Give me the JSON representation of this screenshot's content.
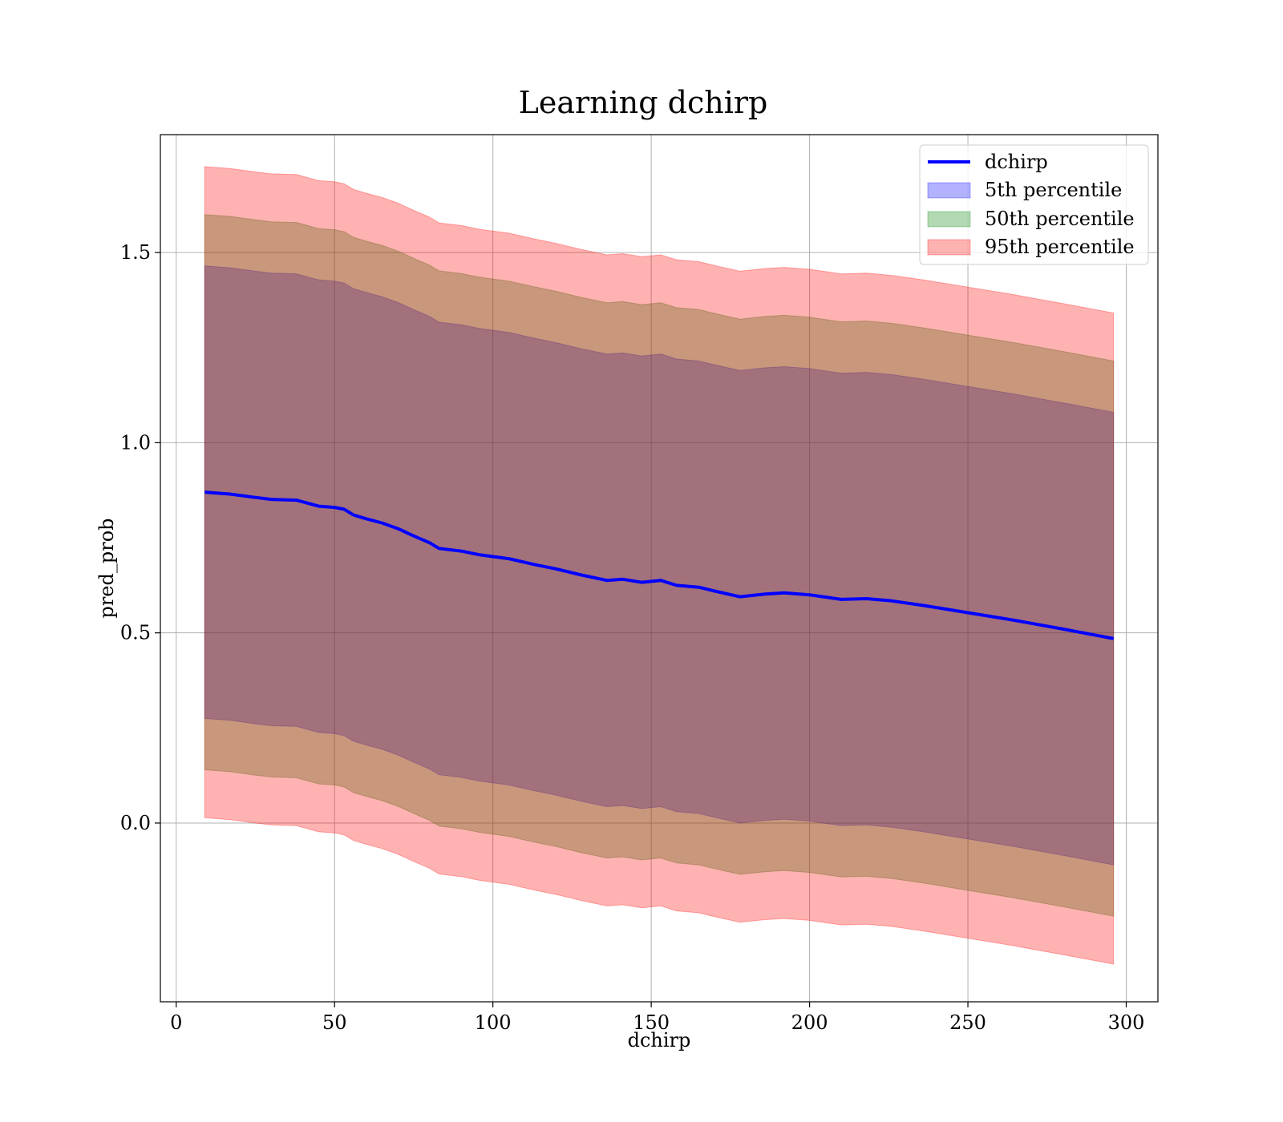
{
  "chart_data": {
    "type": "area",
    "title": "Learning dchirp",
    "xlabel": "dchirp",
    "ylabel": "pred_prob",
    "xlim": [
      -5,
      310
    ],
    "ylim": [
      -0.47,
      1.81
    ],
    "xticks": [
      0,
      50,
      100,
      150,
      200,
      250,
      300
    ],
    "yticks": [
      0.0,
      0.5,
      1.0,
      1.5
    ],
    "xtick_labels": [
      "0",
      "50",
      "100",
      "150",
      "200",
      "250",
      "300"
    ],
    "ytick_labels": [
      "0.0",
      "0.5",
      "1.0",
      "1.5"
    ],
    "grid": true,
    "legend_position": "top-right",
    "legend": [
      {
        "label": "dchirp",
        "kind": "line",
        "color": "#0000ff"
      },
      {
        "label": "5th percentile",
        "kind": "band",
        "color": "#0000ff",
        "alpha": 0.3
      },
      {
        "label": "50th percentile",
        "kind": "band",
        "color": "#008000",
        "alpha": 0.3
      },
      {
        "label": "95th percentile",
        "kind": "band",
        "color": "#ff0000",
        "alpha": 0.3
      }
    ],
    "x": [
      9,
      17,
      25,
      30,
      38,
      45,
      50,
      53,
      56,
      60,
      65,
      70,
      75,
      80,
      83,
      90,
      96,
      105,
      113,
      120,
      128,
      136,
      141,
      147,
      153,
      158,
      165,
      170,
      178,
      186,
      192,
      200,
      210,
      218,
      226,
      236,
      250,
      264,
      280,
      296
    ],
    "center": [
      0.87,
      0.865,
      0.856,
      0.851,
      0.849,
      0.833,
      0.83,
      0.825,
      0.81,
      0.8,
      0.789,
      0.774,
      0.755,
      0.737,
      0.722,
      0.715,
      0.705,
      0.695,
      0.68,
      0.668,
      0.652,
      0.638,
      0.641,
      0.633,
      0.638,
      0.625,
      0.62,
      0.61,
      0.595,
      0.602,
      0.605,
      0.6,
      0.588,
      0.59,
      0.584,
      0.572,
      0.553,
      0.534,
      0.51,
      0.485
    ],
    "series": [
      {
        "name": "5th percentile",
        "half_width": 0.595,
        "color": "#0000ff",
        "alpha": 0.3
      },
      {
        "name": "50th percentile",
        "half_width": 0.73,
        "color": "#008000",
        "alpha": 0.3
      },
      {
        "name": "95th percentile",
        "half_width": 0.856,
        "color": "#ff0000",
        "alpha": 0.3
      }
    ],
    "line_color": "#0000ff"
  }
}
